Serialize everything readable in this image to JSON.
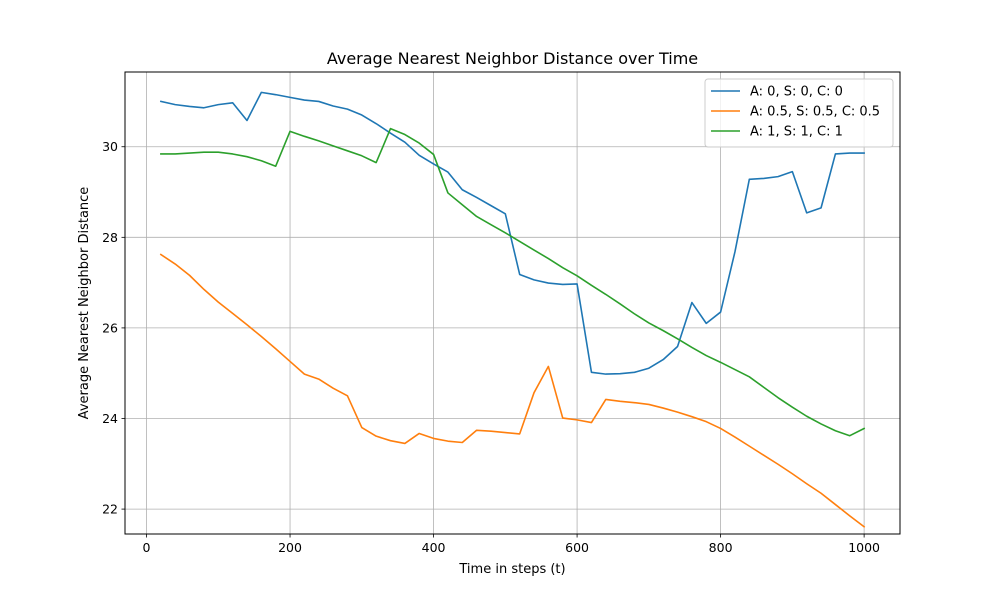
{
  "chart_data": {
    "type": "line",
    "title": "Average Nearest Neighbor Distance over Time",
    "xlabel": "Time in steps (t)",
    "ylabel": "Average Nearest Neighbor Distance",
    "xlim": [
      -30,
      1050
    ],
    "ylim": [
      21.45,
      31.65
    ],
    "xticks": [
      0,
      200,
      400,
      600,
      800,
      1000
    ],
    "yticks": [
      22,
      24,
      26,
      28,
      30
    ],
    "grid": true,
    "legend_position": "top-right",
    "x": [
      20,
      40,
      60,
      80,
      100,
      120,
      140,
      160,
      180,
      200,
      220,
      240,
      260,
      280,
      300,
      320,
      340,
      360,
      380,
      400,
      420,
      440,
      460,
      480,
      500,
      520,
      540,
      560,
      580,
      600,
      620,
      640,
      660,
      680,
      700,
      720,
      740,
      760,
      780,
      800,
      820,
      840,
      860,
      880,
      900,
      920,
      940,
      960,
      980,
      1000
    ],
    "series": [
      {
        "name": "A: 0, S: 0, C: 0",
        "color": "#1f77b4",
        "values": [
          31.0,
          30.93,
          30.89,
          30.86,
          30.93,
          30.97,
          30.58,
          31.2,
          31.15,
          31.09,
          31.03,
          31.0,
          30.9,
          30.83,
          30.7,
          30.51,
          30.3,
          30.1,
          29.81,
          29.62,
          29.44,
          29.05,
          28.88,
          28.7,
          28.52,
          27.18,
          27.06,
          26.99,
          26.96,
          26.97,
          25.02,
          24.98,
          24.99,
          25.02,
          25.11,
          25.3,
          25.59,
          26.56,
          26.1,
          26.35,
          27.68,
          29.28,
          29.3,
          29.34,
          29.45,
          28.54,
          28.65,
          29.84,
          29.86,
          29.86
        ]
      },
      {
        "name": "A: 0.5, S: 0.5, C: 0.5",
        "color": "#ff7f0e",
        "values": [
          27.62,
          27.41,
          27.16,
          26.85,
          26.57,
          26.32,
          26.07,
          25.81,
          25.54,
          25.26,
          24.98,
          24.87,
          24.67,
          24.5,
          23.8,
          23.61,
          23.51,
          23.45,
          23.67,
          23.56,
          23.5,
          23.47,
          23.74,
          23.72,
          23.69,
          23.66,
          24.57,
          25.15,
          24.01,
          23.97,
          23.91,
          24.42,
          24.38,
          24.35,
          24.31,
          24.23,
          24.14,
          24.04,
          23.93,
          23.78,
          23.59,
          23.39,
          23.19,
          22.99,
          22.78,
          22.56,
          22.35,
          22.1,
          21.85,
          21.61
        ]
      },
      {
        "name": "A: 1, S: 1, C: 1",
        "color": "#2ca02c",
        "values": [
          29.84,
          29.84,
          29.86,
          29.88,
          29.88,
          29.84,
          29.78,
          29.69,
          29.57,
          30.34,
          30.23,
          30.13,
          30.02,
          29.91,
          29.8,
          29.65,
          30.4,
          30.27,
          30.08,
          29.83,
          28.98,
          28.72,
          28.46,
          28.28,
          28.1,
          27.91,
          27.72,
          27.53,
          27.33,
          27.15,
          26.94,
          26.74,
          26.53,
          26.31,
          26.11,
          25.94,
          25.76,
          25.57,
          25.39,
          25.24,
          25.08,
          24.92,
          24.69,
          24.46,
          24.25,
          24.05,
          23.88,
          23.73,
          23.62,
          23.78
        ]
      }
    ]
  }
}
